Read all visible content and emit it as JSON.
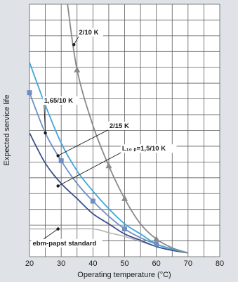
{
  "chart_data": {
    "type": "line",
    "title": "",
    "xlabel": "Operating temperature (°C)",
    "ylabel": "Expected service life",
    "xlim": [
      20,
      80
    ],
    "ylim": [
      0,
      100
    ],
    "x_ticks": [
      20,
      30,
      40,
      50,
      60,
      70,
      80
    ],
    "x_tick_labels": [
      "20",
      "30",
      "40",
      "50",
      "60",
      "70",
      "80"
    ],
    "y_tick_labels_shown": false,
    "grid": true,
    "background_color": "#dfe3e8",
    "plot_color": "#ffffff",
    "series": [
      {
        "name": "2/10 K",
        "color": "#8a8a8a",
        "marker": "triangle",
        "marker_x": [
          35,
          45,
          50,
          60
        ],
        "points": [
          [
            32,
            100
          ],
          [
            35,
            74
          ],
          [
            40,
            52
          ],
          [
            45,
            36
          ],
          [
            50,
            23
          ],
          [
            55,
            13
          ],
          [
            60,
            7
          ],
          [
            65,
            3.5
          ],
          [
            70,
            1.5
          ]
        ]
      },
      {
        "name": "",
        "color": "#3fa6dc",
        "marker": "none",
        "marker_x": [],
        "points": [
          [
            20,
            77
          ],
          [
            25,
            60
          ],
          [
            30,
            45
          ],
          [
            35,
            34
          ],
          [
            40,
            26
          ],
          [
            45,
            19
          ],
          [
            50,
            13
          ],
          [
            55,
            9
          ],
          [
            60,
            5
          ],
          [
            65,
            3
          ],
          [
            70,
            1.5
          ]
        ]
      },
      {
        "name": "1,65/10 K",
        "color": "#6f8fc4",
        "marker": "square",
        "marker_x": [
          20,
          30,
          40,
          50,
          60
        ],
        "points": [
          [
            20,
            65
          ],
          [
            25,
            49
          ],
          [
            30,
            38
          ],
          [
            35,
            29
          ],
          [
            40,
            22
          ],
          [
            45,
            16
          ],
          [
            50,
            11
          ],
          [
            55,
            7.5
          ],
          [
            60,
            5
          ],
          [
            65,
            3
          ],
          [
            70,
            1.5
          ]
        ]
      },
      {
        "name": "L₁₀ ₚ=1,5/10 K",
        "color": "#3c4f86",
        "marker": "none",
        "marker_x": [],
        "points": [
          [
            20,
            49
          ],
          [
            25,
            37
          ],
          [
            30,
            29
          ],
          [
            35,
            23
          ],
          [
            40,
            17
          ],
          [
            45,
            13
          ],
          [
            50,
            9
          ],
          [
            55,
            6.5
          ],
          [
            60,
            4
          ],
          [
            65,
            2.5
          ],
          [
            70,
            1.5
          ]
        ]
      },
      {
        "name": "ebm-papst standard",
        "color": "#b3b3b3",
        "marker": "none",
        "marker_x": [],
        "points": [
          [
            20,
            11
          ],
          [
            30,
            11
          ],
          [
            40,
            11
          ],
          [
            45,
            9.5
          ],
          [
            50,
            8
          ],
          [
            55,
            6
          ],
          [
            60,
            4
          ],
          [
            65,
            2.5
          ],
          [
            70,
            1.5
          ]
        ]
      }
    ],
    "annotations": [
      {
        "text": "2/10 K",
        "series": 0,
        "at": [
          34,
          84
        ],
        "label_at": [
          35.6,
          88
        ]
      },
      {
        "text": "2/15 K",
        "series": 1,
        "at": [
          29,
          40
        ],
        "label_at": [
          45.2,
          51
        ]
      },
      {
        "text": "1,65/10 K",
        "series": 2,
        "at": [
          25,
          49
        ],
        "label_at": [
          24.6,
          61
        ]
      },
      {
        "text": "L₁₀ ₚ=1,5/10 K",
        "series": 3,
        "at": [
          29,
          28
        ],
        "label_at": [
          49.2,
          42
        ]
      },
      {
        "text": "ebm-papst standard",
        "series": 4,
        "at": [
          29,
          11
        ],
        "label_at": [
          21,
          4.5
        ]
      }
    ]
  }
}
